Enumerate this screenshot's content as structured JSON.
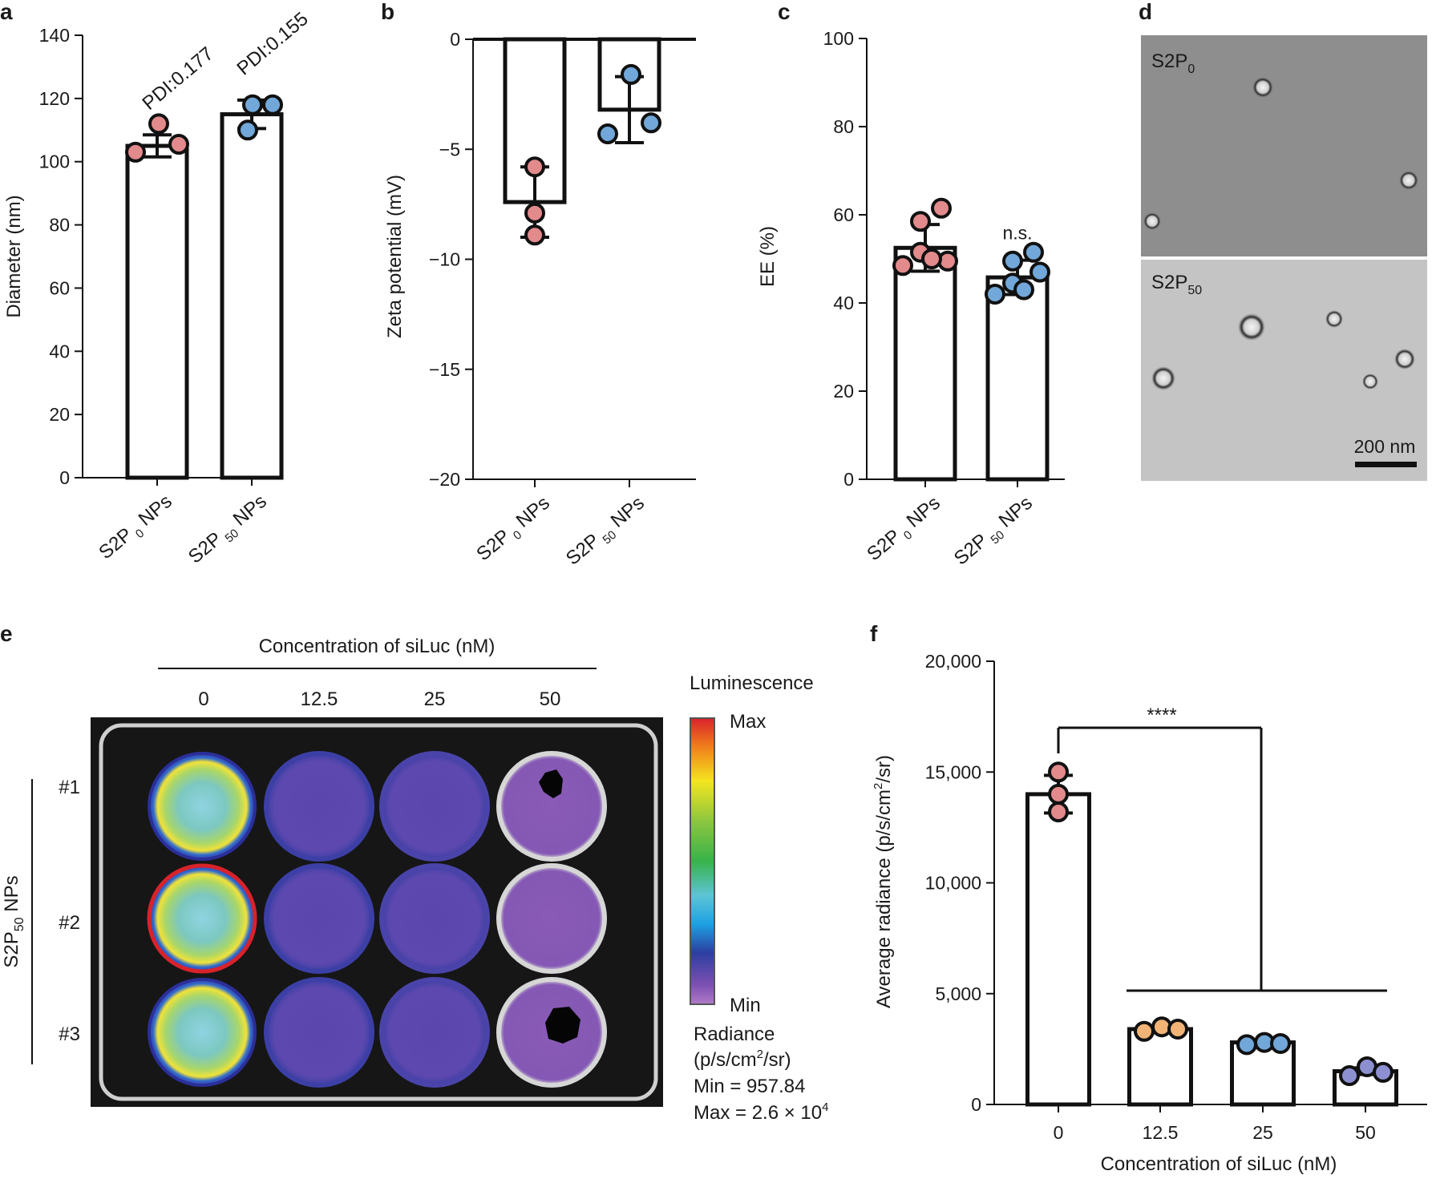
{
  "colors": {
    "pink": "#e28a8c",
    "blue": "#72a8d9",
    "orange": "#f2b377",
    "lavender": "#8d90d0",
    "black": "#111111",
    "tem_top": "#8a8a8a",
    "tem_bottom": "#c5c5c5",
    "plate_bg": "#1a1a1a",
    "well_purple": "#7d55b4",
    "well_blue_ring": "#3c3fa5"
  },
  "panels": {
    "a": {
      "letter": "a"
    },
    "b": {
      "letter": "b"
    },
    "c": {
      "letter": "c"
    },
    "d": {
      "letter": "d",
      "top_label": "S2P",
      "top_sub": "0",
      "bottom_label": "S2P",
      "bottom_sub": "50",
      "scale_label": "200 nm"
    },
    "e": {
      "letter": "e",
      "header": "Concentration of siLuc (nM)",
      "columns": [
        "0",
        "12.5",
        "25",
        "50"
      ],
      "group_label": "S2P",
      "group_sub": "50",
      "group_suffix": " NPs",
      "rows": [
        "#1",
        "#2",
        "#3"
      ],
      "legend_title": "Luminescence",
      "legend_max": "Max",
      "legend_min": "Min",
      "radiance_line1": "Radiance",
      "radiance_line2_a": "(p/s/cm",
      "radiance_line2_sup": "2",
      "radiance_line2_b": "/sr)",
      "min_text": "Min = 957.84",
      "max_text_a": "Max = 2.6 × 10",
      "max_text_sup": "4"
    },
    "f": {
      "letter": "f"
    }
  },
  "chart_data": [
    {
      "panel": "a",
      "type": "bar",
      "categories": [
        "S2P 0 NPs",
        "S2P 50 NPs"
      ],
      "category_main": [
        "S2P",
        "S2P"
      ],
      "category_sub": [
        "0",
        "50"
      ],
      "category_suffix": [
        " NPs",
        " NPs"
      ],
      "values": [
        105,
        115
      ],
      "errors": [
        3.5,
        4.5
      ],
      "points": [
        [
          103,
          112,
          105.5
        ],
        [
          110,
          118,
          118
        ]
      ],
      "point_colors": [
        "pink",
        "blue"
      ],
      "annotations": [
        "PDI:0.177",
        "PDI:0.155"
      ],
      "ylabel": "Diameter (nm)",
      "ylim": [
        0,
        140
      ],
      "yticks": [
        "0",
        "20",
        "40",
        "60",
        "80",
        "100",
        "120",
        "140"
      ]
    },
    {
      "panel": "b",
      "type": "bar",
      "categories": [
        "S2P 0 NPs",
        "S2P 50 NPs"
      ],
      "category_main": [
        "S2P",
        "S2P"
      ],
      "category_sub": [
        "0",
        "50"
      ],
      "category_suffix": [
        " NPs",
        " NPs"
      ],
      "values": [
        -7.4,
        -3.2
      ],
      "errors": [
        1.6,
        1.5
      ],
      "points": [
        [
          -5.8,
          -7.9,
          -8.9
        ],
        [
          -1.6,
          -4.3,
          -3.8
        ]
      ],
      "point_colors": [
        "pink",
        "blue"
      ],
      "ylabel": "Zeta potential (mV)",
      "ylim": [
        -20,
        0
      ],
      "yticks": [
        "0",
        "-5",
        "-10",
        "-15",
        "-20"
      ]
    },
    {
      "panel": "c",
      "type": "bar",
      "categories": [
        "S2P 0 NPs",
        "S2P 50 NPs"
      ],
      "category_main": [
        "S2P",
        "S2P"
      ],
      "category_sub": [
        "0",
        "50"
      ],
      "category_suffix": [
        " NPs",
        " NPs"
      ],
      "values": [
        52.5,
        45.8
      ],
      "errors": [
        5.3,
        3.9
      ],
      "points": [
        [
          61.5,
          58.5,
          51.5,
          48.5,
          49.5,
          50.0
        ],
        [
          51.5,
          49.5,
          44.5,
          42.0,
          47.0,
          43.0
        ]
      ],
      "point_colors": [
        "pink",
        "blue"
      ],
      "annotations": [
        "",
        "n.s."
      ],
      "ylabel": "EE (%)",
      "ylim": [
        0,
        100
      ],
      "yticks": [
        "0",
        "20",
        "40",
        "60",
        "80",
        "100"
      ]
    },
    {
      "panel": "f",
      "type": "bar",
      "categories": [
        "0",
        "12.5",
        "25",
        "50"
      ],
      "values": [
        14000,
        3400,
        2800,
        1500
      ],
      "errors": [
        850,
        120,
        80,
        150
      ],
      "points": [
        [
          15000,
          14000,
          13200
        ],
        [
          3300,
          3500,
          3400
        ],
        [
          2700,
          2800,
          2750
        ],
        [
          1300,
          1700,
          1450
        ]
      ],
      "point_colors": [
        "pink",
        "orange",
        "blue",
        "lavender"
      ],
      "xlabel": "Concentration of siLuc (nM)",
      "ylabel_a": "Average radiance (p/s/cm",
      "ylabel_sup": "2",
      "ylabel_b": "/sr)",
      "ylim": [
        0,
        20000
      ],
      "yticks": [
        "0",
        "5,000",
        "10,000",
        "15,000",
        "20,000"
      ],
      "significance": "****"
    }
  ]
}
